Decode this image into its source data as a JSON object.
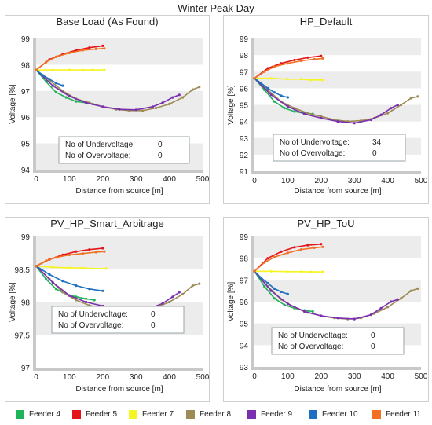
{
  "figure": {
    "title": "Winter Peak Day"
  },
  "legend": [
    {
      "name": "Feeder 4",
      "color": "#1fb35a"
    },
    {
      "name": "Feeder 5",
      "color": "#e3151b"
    },
    {
      "name": "Feeder 7",
      "color": "#f5f522"
    },
    {
      "name": "Feeder 8",
      "color": "#9c8b55"
    },
    {
      "name": "Feeder 9",
      "color": "#7a2fb0"
    },
    {
      "name": "Feeder 10",
      "color": "#1d6fc2"
    },
    {
      "name": "Feeder 11",
      "color": "#f27022"
    }
  ],
  "chart_data": [
    {
      "type": "line",
      "title": "Base Load (As Found)",
      "xlabel": "Distance from source [m]",
      "ylabel": "Voltage [%]",
      "xlim": [
        0,
        500
      ],
      "ylim": [
        94,
        99
      ],
      "xticks": [
        0,
        100,
        200,
        300,
        400,
        500
      ],
      "yticks": [
        94,
        95,
        96,
        97,
        98,
        99
      ],
      "ytick_labels": [
        "94",
        "95",
        "96",
        "97",
        "98",
        "99"
      ],
      "bands": [
        [
          98,
          99
        ],
        [
          96,
          97
        ],
        [
          94,
          95
        ]
      ],
      "annotation": {
        "under_label": "No of Undervoltage:",
        "under_value": "0",
        "over_label": "No of Overvoltage:",
        "over_value": "0"
      },
      "series": [
        {
          "name": "Feeder 4",
          "x": [
            0,
            30,
            60,
            90,
            120,
            150,
            170
          ],
          "y": [
            97.8,
            97.35,
            96.95,
            96.75,
            96.6,
            96.55,
            96.5
          ]
        },
        {
          "name": "Feeder 5",
          "x": [
            0,
            40,
            80,
            120,
            160,
            200
          ],
          "y": [
            97.8,
            98.2,
            98.4,
            98.55,
            98.65,
            98.72
          ]
        },
        {
          "name": "Feeder 7",
          "x": [
            0,
            50,
            100,
            140,
            170,
            205
          ],
          "y": [
            97.8,
            97.8,
            97.8,
            97.8,
            97.8,
            97.8
          ]
        },
        {
          "name": "Feeder 8",
          "x": [
            0,
            40,
            80,
            120,
            160,
            200,
            240,
            280,
            320,
            360,
            400,
            440,
            470,
            490
          ],
          "y": [
            97.8,
            97.4,
            97.0,
            96.7,
            96.55,
            96.4,
            96.3,
            96.25,
            96.25,
            96.35,
            96.5,
            96.75,
            97.05,
            97.15
          ]
        },
        {
          "name": "Feeder 9",
          "x": [
            0,
            50,
            100,
            150,
            200,
            250,
            300,
            350,
            380,
            410,
            430
          ],
          "y": [
            97.8,
            97.2,
            96.8,
            96.55,
            96.4,
            96.3,
            96.28,
            96.4,
            96.55,
            96.75,
            96.85
          ]
        },
        {
          "name": "Feeder 10",
          "x": [
            0,
            20,
            40,
            60,
            80
          ],
          "y": [
            97.8,
            97.6,
            97.45,
            97.3,
            97.2
          ]
        },
        {
          "name": "Feeder 11",
          "x": [
            0,
            30,
            60,
            100,
            140,
            180,
            205
          ],
          "y": [
            97.8,
            98.1,
            98.3,
            98.45,
            98.55,
            98.6,
            98.62
          ]
        }
      ]
    },
    {
      "type": "line",
      "title": "HP_Default",
      "xlabel": "Distance from source [m]",
      "ylabel": "Voltage [%]",
      "xlim": [
        0,
        500
      ],
      "ylim": [
        91,
        99
      ],
      "xticks": [
        0,
        100,
        200,
        300,
        400,
        500
      ],
      "yticks": [
        91,
        92,
        93,
        94,
        95,
        96,
        97,
        98,
        99
      ],
      "ytick_labels": [
        "91",
        "92",
        "93",
        "94",
        "95",
        "96",
        "97",
        "98",
        "99"
      ],
      "bands": [
        [
          98,
          99
        ],
        [
          96,
          97
        ],
        [
          94,
          95
        ],
        [
          92,
          93
        ]
      ],
      "annotation": {
        "under_label": "No of Undervoltage:",
        "under_value": "34",
        "over_label": "No of Overvoltage:",
        "over_value": "0"
      },
      "series": [
        {
          "name": "Feeder 4",
          "x": [
            0,
            30,
            60,
            90,
            120,
            150,
            175
          ],
          "y": [
            96.6,
            95.9,
            95.2,
            94.8,
            94.6,
            94.5,
            94.45
          ]
        },
        {
          "name": "Feeder 5",
          "x": [
            0,
            40,
            80,
            120,
            160,
            200
          ],
          "y": [
            96.6,
            97.2,
            97.5,
            97.7,
            97.85,
            97.95
          ]
        },
        {
          "name": "Feeder 7",
          "x": [
            0,
            50,
            100,
            140,
            170,
            205
          ],
          "y": [
            96.6,
            96.6,
            96.55,
            96.55,
            96.5,
            96.5
          ]
        },
        {
          "name": "Feeder 8",
          "x": [
            0,
            40,
            80,
            120,
            160,
            200,
            240,
            280,
            320,
            360,
            400,
            440,
            470,
            490
          ],
          "y": [
            96.6,
            95.9,
            95.2,
            94.8,
            94.5,
            94.3,
            94.1,
            94.0,
            94.05,
            94.2,
            94.5,
            95.0,
            95.4,
            95.5
          ]
        },
        {
          "name": "Feeder 9",
          "x": [
            0,
            50,
            100,
            150,
            200,
            250,
            300,
            350,
            380,
            410,
            430
          ],
          "y": [
            96.6,
            95.6,
            94.9,
            94.45,
            94.2,
            94.0,
            93.9,
            94.1,
            94.4,
            94.8,
            95.0
          ]
        },
        {
          "name": "Feeder 10",
          "x": [
            0,
            20,
            40,
            60,
            80,
            100
          ],
          "y": [
            96.6,
            96.3,
            96.0,
            95.75,
            95.55,
            95.45
          ]
        },
        {
          "name": "Feeder 11",
          "x": [
            0,
            30,
            60,
            100,
            140,
            180,
            205
          ],
          "y": [
            96.6,
            97.0,
            97.3,
            97.5,
            97.65,
            97.75,
            97.8
          ]
        }
      ]
    },
    {
      "type": "line",
      "title": "PV_HP_Smart_Arbitrage",
      "xlabel": "Distance from source [m]",
      "ylabel": "Voltage [%]",
      "xlim": [
        0,
        500
      ],
      "ylim": [
        97,
        99
      ],
      "xticks": [
        0,
        100,
        200,
        300,
        400,
        500
      ],
      "yticks": [
        97,
        97.5,
        98,
        98.5,
        99
      ],
      "ytick_labels": [
        "97",
        "97.5",
        "98",
        "98.5",
        "99"
      ],
      "bands": [
        [
          98.5,
          99
        ],
        [
          97.5,
          98
        ]
      ],
      "annotation": {
        "under_label": "No of Undervoltage:",
        "under_value": "0",
        "over_label": "No of Overvoltage:",
        "over_value": "0"
      },
      "series": [
        {
          "name": "Feeder 4",
          "x": [
            0,
            30,
            60,
            90,
            120,
            150,
            175
          ],
          "y": [
            98.55,
            98.35,
            98.2,
            98.12,
            98.08,
            98.05,
            98.03
          ]
        },
        {
          "name": "Feeder 5",
          "x": [
            0,
            40,
            80,
            120,
            160,
            200
          ],
          "y": [
            98.55,
            98.65,
            98.72,
            98.77,
            98.8,
            98.82
          ]
        },
        {
          "name": "Feeder 7",
          "x": [
            0,
            50,
            100,
            140,
            170,
            210
          ],
          "y": [
            98.55,
            98.53,
            98.52,
            98.52,
            98.51,
            98.51
          ]
        },
        {
          "name": "Feeder 8",
          "x": [
            0,
            40,
            80,
            120,
            160,
            200,
            240,
            280,
            320,
            360,
            400,
            440,
            470,
            490
          ],
          "y": [
            98.55,
            98.35,
            98.15,
            98.03,
            97.95,
            97.9,
            97.88,
            97.87,
            97.88,
            97.92,
            98.0,
            98.12,
            98.25,
            98.28
          ]
        },
        {
          "name": "Feeder 9",
          "x": [
            0,
            50,
            100,
            150,
            200,
            250,
            300,
            350,
            380,
            410,
            430
          ],
          "y": [
            98.55,
            98.3,
            98.1,
            98.0,
            97.94,
            97.9,
            97.88,
            97.92,
            97.98,
            98.08,
            98.15
          ]
        },
        {
          "name": "Feeder 10",
          "x": [
            0,
            40,
            80,
            120,
            160,
            200
          ],
          "y": [
            98.55,
            98.42,
            98.32,
            98.25,
            98.2,
            98.17
          ]
        },
        {
          "name": "Feeder 11",
          "x": [
            0,
            30,
            60,
            100,
            140,
            180,
            205
          ],
          "y": [
            98.55,
            98.63,
            98.68,
            98.72,
            98.74,
            98.76,
            98.77
          ]
        }
      ]
    },
    {
      "type": "line",
      "title": "PV_HP_ToU",
      "xlabel": "Distance from source [m]",
      "ylabel": "Voltage [%]",
      "xlim": [
        0,
        500
      ],
      "ylim": [
        93,
        99
      ],
      "xticks": [
        0,
        100,
        200,
        300,
        400,
        500
      ],
      "yticks": [
        93,
        94,
        95,
        96,
        97,
        98,
        99
      ],
      "ytick_labels": [
        "93",
        "94",
        "95",
        "96",
        "97",
        "98",
        "99"
      ],
      "bands": [
        [
          98,
          99
        ],
        [
          96,
          97
        ],
        [
          94,
          95
        ]
      ],
      "annotation": {
        "under_label": "No of Undervoltage:",
        "under_value": "0",
        "over_label": "No of Overvoltage:",
        "over_value": "0"
      },
      "series": [
        {
          "name": "Feeder 4",
          "x": [
            0,
            30,
            60,
            90,
            120,
            150,
            175
          ],
          "y": [
            97.4,
            96.7,
            96.15,
            95.85,
            95.7,
            95.6,
            95.55
          ]
        },
        {
          "name": "Feeder 5",
          "x": [
            0,
            40,
            80,
            120,
            160,
            200
          ],
          "y": [
            97.4,
            98.0,
            98.3,
            98.5,
            98.6,
            98.65
          ]
        },
        {
          "name": "Feeder 7",
          "x": [
            0,
            50,
            100,
            140,
            170,
            205
          ],
          "y": [
            97.4,
            97.4,
            97.38,
            97.38,
            97.37,
            97.37
          ]
        },
        {
          "name": "Feeder 8",
          "x": [
            0,
            40,
            80,
            120,
            160,
            200,
            240,
            280,
            320,
            360,
            400,
            440,
            470,
            490
          ],
          "y": [
            97.4,
            96.7,
            96.1,
            95.75,
            95.5,
            95.35,
            95.25,
            95.2,
            95.25,
            95.45,
            95.75,
            96.15,
            96.5,
            96.6
          ]
        },
        {
          "name": "Feeder 9",
          "x": [
            0,
            50,
            100,
            150,
            200,
            250,
            300,
            350,
            380,
            410,
            430
          ],
          "y": [
            97.4,
            96.5,
            95.9,
            95.55,
            95.35,
            95.25,
            95.2,
            95.4,
            95.7,
            96.0,
            96.1
          ]
        },
        {
          "name": "Feeder 10",
          "x": [
            0,
            20,
            40,
            60,
            80,
            100
          ],
          "y": [
            97.4,
            97.1,
            96.85,
            96.6,
            96.45,
            96.35
          ]
        },
        {
          "name": "Feeder 11",
          "x": [
            0,
            30,
            60,
            100,
            140,
            180,
            205
          ],
          "y": [
            97.4,
            97.8,
            98.05,
            98.25,
            98.4,
            98.48,
            98.52
          ]
        }
      ]
    }
  ]
}
